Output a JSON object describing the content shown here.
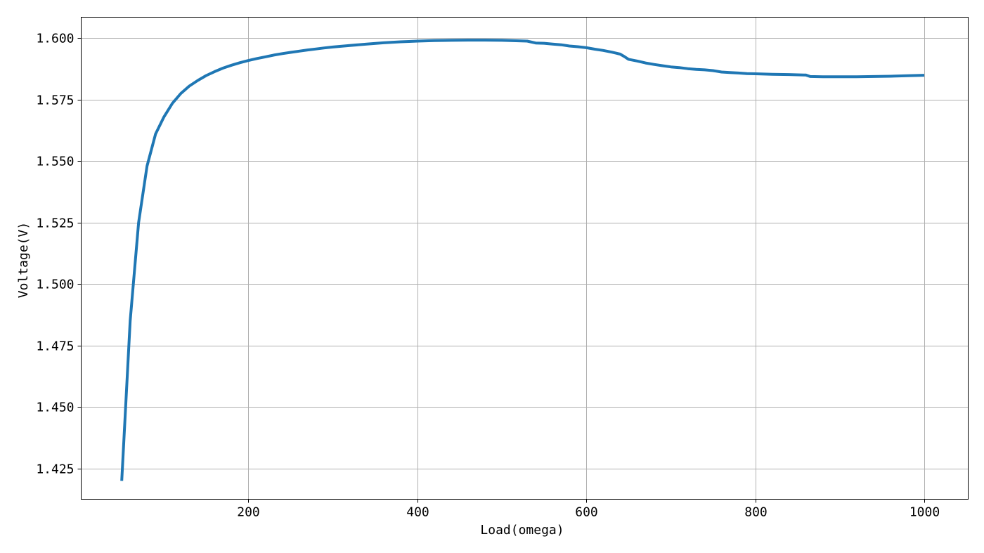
{
  "chart_data": {
    "type": "line",
    "title": "",
    "xlabel": "Load(omega)",
    "ylabel": "Voltage(V)",
    "xlim": [
      2,
      1052
    ],
    "ylim": [
      1.4125,
      1.6085
    ],
    "xticks": [
      200,
      400,
      600,
      800,
      1000
    ],
    "xtick_labels": [
      "200",
      "400",
      "600",
      "800",
      "1000"
    ],
    "yticks": [
      1.425,
      1.45,
      1.475,
      1.5,
      1.525,
      1.55,
      1.575,
      1.6
    ],
    "ytick_labels": [
      "1.425",
      "1.450",
      "1.475",
      "1.500",
      "1.525",
      "1.550",
      "1.575",
      "1.600"
    ],
    "grid": true,
    "legend": false,
    "series": [
      {
        "color": "#1f77b4",
        "x": [
          50,
          60,
          70,
          80,
          90,
          100,
          110,
          120,
          130,
          140,
          150,
          160,
          170,
          180,
          190,
          200,
          210,
          220,
          230,
          240,
          250,
          260,
          270,
          280,
          290,
          300,
          320,
          340,
          360,
          380,
          400,
          420,
          440,
          460,
          480,
          500,
          520,
          530,
          540,
          550,
          560,
          570,
          580,
          590,
          600,
          610,
          620,
          630,
          635,
          640,
          645,
          650,
          660,
          670,
          680,
          690,
          700,
          710,
          720,
          730,
          740,
          750,
          760,
          770,
          780,
          790,
          800,
          820,
          840,
          860,
          865,
          880,
          900,
          920,
          940,
          960,
          980,
          1000
        ],
        "y": [
          1.42,
          1.485,
          1.525,
          1.548,
          1.561,
          1.568,
          1.5735,
          1.5775,
          1.5805,
          1.5828,
          1.5848,
          1.5864,
          1.5878,
          1.589,
          1.59,
          1.5909,
          1.5917,
          1.5924,
          1.5931,
          1.5937,
          1.5942,
          1.5947,
          1.5952,
          1.5956,
          1.596,
          1.5964,
          1.597,
          1.5976,
          1.5981,
          1.5985,
          1.5988,
          1.599,
          1.5991,
          1.5992,
          1.5992,
          1.5991,
          1.5989,
          1.5988,
          1.598,
          1.5979,
          1.5976,
          1.5973,
          1.5968,
          1.5965,
          1.5961,
          1.5955,
          1.595,
          1.5943,
          1.5939,
          1.5935,
          1.5925,
          1.5914,
          1.5907,
          1.5899,
          1.5893,
          1.5888,
          1.5883,
          1.588,
          1.5876,
          1.5873,
          1.5871,
          1.5868,
          1.5862,
          1.586,
          1.5858,
          1.5856,
          1.5855,
          1.5853,
          1.5852,
          1.585,
          1.5844,
          1.5843,
          1.5843,
          1.5843,
          1.5844,
          1.5845,
          1.5847,
          1.5849
        ]
      }
    ]
  }
}
